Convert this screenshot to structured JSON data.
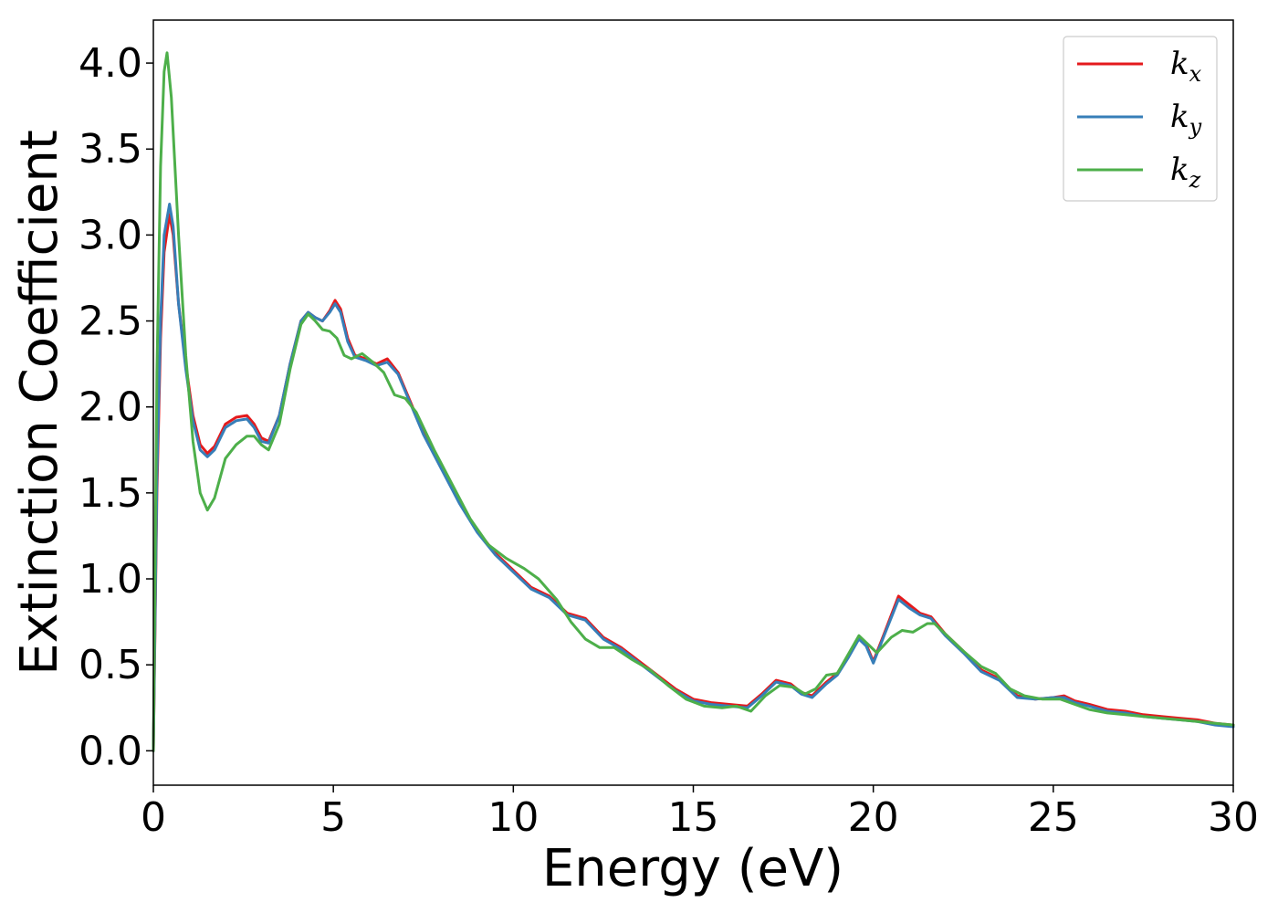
{
  "chart_data": {
    "type": "line",
    "title": "",
    "xlabel": "Energy (eV)",
    "ylabel": "Extinction Coefficient",
    "xlim": [
      0,
      30
    ],
    "ylim": [
      -0.2,
      4.25
    ],
    "xticks": [
      0,
      5,
      10,
      15,
      20,
      25,
      30
    ],
    "xtick_labels": [
      "0",
      "5",
      "10",
      "15",
      "20",
      "25",
      "30"
    ],
    "yticks": [
      0.0,
      0.5,
      1.0,
      1.5,
      2.0,
      2.5,
      3.0,
      3.5,
      4.0
    ],
    "ytick_labels": [
      "0.0",
      "0.5",
      "1.0",
      "1.5",
      "2.0",
      "2.5",
      "3.0",
      "3.5",
      "4.0"
    ],
    "grid": false,
    "legend_position": "top-right",
    "series": [
      {
        "name": "k",
        "subscript": "x",
        "color": "#e41a1c",
        "points": [
          [
            0,
            0
          ],
          [
            0.1,
            1.5
          ],
          [
            0.2,
            2.4
          ],
          [
            0.3,
            2.9
          ],
          [
            0.45,
            3.12
          ],
          [
            0.55,
            3.0
          ],
          [
            0.7,
            2.6
          ],
          [
            0.9,
            2.25
          ],
          [
            1.1,
            1.95
          ],
          [
            1.3,
            1.78
          ],
          [
            1.5,
            1.73
          ],
          [
            1.7,
            1.77
          ],
          [
            2.0,
            1.9
          ],
          [
            2.3,
            1.94
          ],
          [
            2.6,
            1.95
          ],
          [
            2.8,
            1.9
          ],
          [
            3.0,
            1.82
          ],
          [
            3.2,
            1.8
          ],
          [
            3.5,
            1.95
          ],
          [
            3.8,
            2.25
          ],
          [
            4.1,
            2.5
          ],
          [
            4.3,
            2.55
          ],
          [
            4.5,
            2.52
          ],
          [
            4.7,
            2.5
          ],
          [
            4.9,
            2.56
          ],
          [
            5.05,
            2.62
          ],
          [
            5.2,
            2.57
          ],
          [
            5.4,
            2.4
          ],
          [
            5.6,
            2.3
          ],
          [
            5.9,
            2.28
          ],
          [
            6.2,
            2.25
          ],
          [
            6.5,
            2.28
          ],
          [
            6.8,
            2.2
          ],
          [
            7.1,
            2.05
          ],
          [
            7.5,
            1.85
          ],
          [
            8.0,
            1.65
          ],
          [
            8.5,
            1.45
          ],
          [
            9.0,
            1.28
          ],
          [
            9.5,
            1.15
          ],
          [
            10.0,
            1.05
          ],
          [
            10.5,
            0.95
          ],
          [
            11.0,
            0.9
          ],
          [
            11.5,
            0.8
          ],
          [
            12.0,
            0.77
          ],
          [
            12.5,
            0.66
          ],
          [
            13.0,
            0.6
          ],
          [
            13.5,
            0.52
          ],
          [
            14.0,
            0.44
          ],
          [
            14.5,
            0.36
          ],
          [
            15.0,
            0.3
          ],
          [
            15.5,
            0.28
          ],
          [
            16.0,
            0.27
          ],
          [
            16.5,
            0.26
          ],
          [
            16.9,
            0.33
          ],
          [
            17.3,
            0.41
          ],
          [
            17.7,
            0.39
          ],
          [
            18.0,
            0.34
          ],
          [
            18.3,
            0.32
          ],
          [
            18.7,
            0.4
          ],
          [
            19.0,
            0.45
          ],
          [
            19.3,
            0.55
          ],
          [
            19.6,
            0.66
          ],
          [
            19.8,
            0.62
          ],
          [
            20.0,
            0.52
          ],
          [
            20.3,
            0.68
          ],
          [
            20.7,
            0.9
          ],
          [
            21.0,
            0.85
          ],
          [
            21.3,
            0.8
          ],
          [
            21.6,
            0.78
          ],
          [
            22.0,
            0.68
          ],
          [
            22.5,
            0.58
          ],
          [
            23.0,
            0.47
          ],
          [
            23.5,
            0.42
          ],
          [
            24.0,
            0.32
          ],
          [
            24.5,
            0.3
          ],
          [
            25.0,
            0.31
          ],
          [
            25.3,
            0.32
          ],
          [
            25.6,
            0.29
          ],
          [
            26.0,
            0.27
          ],
          [
            26.5,
            0.24
          ],
          [
            27.0,
            0.23
          ],
          [
            27.5,
            0.21
          ],
          [
            28.0,
            0.2
          ],
          [
            28.5,
            0.19
          ],
          [
            29.0,
            0.18
          ],
          [
            29.5,
            0.16
          ],
          [
            30.0,
            0.15
          ]
        ]
      },
      {
        "name": "k",
        "subscript": "y",
        "color": "#377eb8",
        "points": [
          [
            0,
            0
          ],
          [
            0.1,
            1.6
          ],
          [
            0.2,
            2.5
          ],
          [
            0.3,
            3.0
          ],
          [
            0.45,
            3.18
          ],
          [
            0.55,
            3.05
          ],
          [
            0.7,
            2.6
          ],
          [
            0.9,
            2.22
          ],
          [
            1.1,
            1.92
          ],
          [
            1.3,
            1.75
          ],
          [
            1.5,
            1.71
          ],
          [
            1.7,
            1.75
          ],
          [
            2.0,
            1.88
          ],
          [
            2.3,
            1.92
          ],
          [
            2.6,
            1.93
          ],
          [
            2.8,
            1.88
          ],
          [
            3.0,
            1.8
          ],
          [
            3.2,
            1.79
          ],
          [
            3.5,
            1.95
          ],
          [
            3.8,
            2.25
          ],
          [
            4.1,
            2.5
          ],
          [
            4.3,
            2.55
          ],
          [
            4.5,
            2.52
          ],
          [
            4.7,
            2.5
          ],
          [
            4.9,
            2.55
          ],
          [
            5.05,
            2.6
          ],
          [
            5.2,
            2.55
          ],
          [
            5.4,
            2.38
          ],
          [
            5.6,
            2.29
          ],
          [
            5.9,
            2.27
          ],
          [
            6.2,
            2.24
          ],
          [
            6.5,
            2.26
          ],
          [
            6.8,
            2.19
          ],
          [
            7.1,
            2.04
          ],
          [
            7.5,
            1.84
          ],
          [
            8.0,
            1.64
          ],
          [
            8.5,
            1.44
          ],
          [
            9.0,
            1.27
          ],
          [
            9.5,
            1.14
          ],
          [
            10.0,
            1.04
          ],
          [
            10.5,
            0.94
          ],
          [
            11.0,
            0.89
          ],
          [
            11.5,
            0.79
          ],
          [
            12.0,
            0.76
          ],
          [
            12.5,
            0.65
          ],
          [
            13.0,
            0.59
          ],
          [
            13.5,
            0.51
          ],
          [
            14.0,
            0.43
          ],
          [
            14.5,
            0.35
          ],
          [
            15.0,
            0.29
          ],
          [
            15.5,
            0.27
          ],
          [
            16.0,
            0.26
          ],
          [
            16.5,
            0.25
          ],
          [
            16.9,
            0.32
          ],
          [
            17.3,
            0.4
          ],
          [
            17.7,
            0.38
          ],
          [
            18.0,
            0.33
          ],
          [
            18.3,
            0.31
          ],
          [
            18.7,
            0.39
          ],
          [
            19.0,
            0.44
          ],
          [
            19.3,
            0.54
          ],
          [
            19.6,
            0.65
          ],
          [
            19.8,
            0.61
          ],
          [
            20.0,
            0.51
          ],
          [
            20.3,
            0.67
          ],
          [
            20.7,
            0.88
          ],
          [
            21.0,
            0.83
          ],
          [
            21.3,
            0.79
          ],
          [
            21.6,
            0.77
          ],
          [
            22.0,
            0.67
          ],
          [
            22.5,
            0.57
          ],
          [
            23.0,
            0.46
          ],
          [
            23.5,
            0.41
          ],
          [
            24.0,
            0.31
          ],
          [
            24.5,
            0.3
          ],
          [
            25.0,
            0.31
          ],
          [
            25.3,
            0.31
          ],
          [
            25.6,
            0.28
          ],
          [
            26.0,
            0.26
          ],
          [
            26.5,
            0.23
          ],
          [
            27.0,
            0.22
          ],
          [
            27.5,
            0.2
          ],
          [
            28.0,
            0.19
          ],
          [
            28.5,
            0.18
          ],
          [
            29.0,
            0.17
          ],
          [
            29.5,
            0.15
          ],
          [
            30.0,
            0.14
          ]
        ]
      },
      {
        "name": "k",
        "subscript": "z",
        "color": "#4daf4a",
        "points": [
          [
            0,
            0
          ],
          [
            0.1,
            2.2
          ],
          [
            0.2,
            3.4
          ],
          [
            0.3,
            3.95
          ],
          [
            0.38,
            4.06
          ],
          [
            0.5,
            3.8
          ],
          [
            0.7,
            3.0
          ],
          [
            0.9,
            2.3
          ],
          [
            1.1,
            1.8
          ],
          [
            1.3,
            1.5
          ],
          [
            1.5,
            1.4
          ],
          [
            1.7,
            1.47
          ],
          [
            2.0,
            1.7
          ],
          [
            2.3,
            1.78
          ],
          [
            2.6,
            1.83
          ],
          [
            2.8,
            1.83
          ],
          [
            3.0,
            1.78
          ],
          [
            3.2,
            1.75
          ],
          [
            3.5,
            1.9
          ],
          [
            3.8,
            2.22
          ],
          [
            4.1,
            2.48
          ],
          [
            4.3,
            2.54
          ],
          [
            4.5,
            2.5
          ],
          [
            4.7,
            2.45
          ],
          [
            4.9,
            2.44
          ],
          [
            5.1,
            2.4
          ],
          [
            5.3,
            2.3
          ],
          [
            5.5,
            2.28
          ],
          [
            5.8,
            2.31
          ],
          [
            6.1,
            2.26
          ],
          [
            6.4,
            2.2
          ],
          [
            6.7,
            2.07
          ],
          [
            7.0,
            2.05
          ],
          [
            7.3,
            1.97
          ],
          [
            7.8,
            1.75
          ],
          [
            8.3,
            1.55
          ],
          [
            8.8,
            1.35
          ],
          [
            9.3,
            1.2
          ],
          [
            9.8,
            1.12
          ],
          [
            10.3,
            1.06
          ],
          [
            10.7,
            1.0
          ],
          [
            11.2,
            0.88
          ],
          [
            11.6,
            0.75
          ],
          [
            12.0,
            0.65
          ],
          [
            12.4,
            0.6
          ],
          [
            12.8,
            0.6
          ],
          [
            13.3,
            0.53
          ],
          [
            13.8,
            0.47
          ],
          [
            14.3,
            0.38
          ],
          [
            14.8,
            0.3
          ],
          [
            15.3,
            0.26
          ],
          [
            15.8,
            0.25
          ],
          [
            16.2,
            0.26
          ],
          [
            16.6,
            0.23
          ],
          [
            17.0,
            0.32
          ],
          [
            17.4,
            0.38
          ],
          [
            17.8,
            0.37
          ],
          [
            18.1,
            0.33
          ],
          [
            18.4,
            0.36
          ],
          [
            18.7,
            0.44
          ],
          [
            19.0,
            0.45
          ],
          [
            19.3,
            0.56
          ],
          [
            19.6,
            0.67
          ],
          [
            19.8,
            0.63
          ],
          [
            20.1,
            0.57
          ],
          [
            20.5,
            0.66
          ],
          [
            20.8,
            0.7
          ],
          [
            21.1,
            0.69
          ],
          [
            21.5,
            0.74
          ],
          [
            21.7,
            0.74
          ],
          [
            22.0,
            0.68
          ],
          [
            22.5,
            0.58
          ],
          [
            23.0,
            0.49
          ],
          [
            23.4,
            0.45
          ],
          [
            23.8,
            0.36
          ],
          [
            24.2,
            0.32
          ],
          [
            24.7,
            0.3
          ],
          [
            25.2,
            0.3
          ],
          [
            25.6,
            0.27
          ],
          [
            26.0,
            0.24
          ],
          [
            26.5,
            0.22
          ],
          [
            27.0,
            0.21
          ],
          [
            27.5,
            0.2
          ],
          [
            28.0,
            0.19
          ],
          [
            28.5,
            0.18
          ],
          [
            29.0,
            0.17
          ],
          [
            29.5,
            0.16
          ],
          [
            30.0,
            0.15
          ]
        ]
      }
    ]
  }
}
